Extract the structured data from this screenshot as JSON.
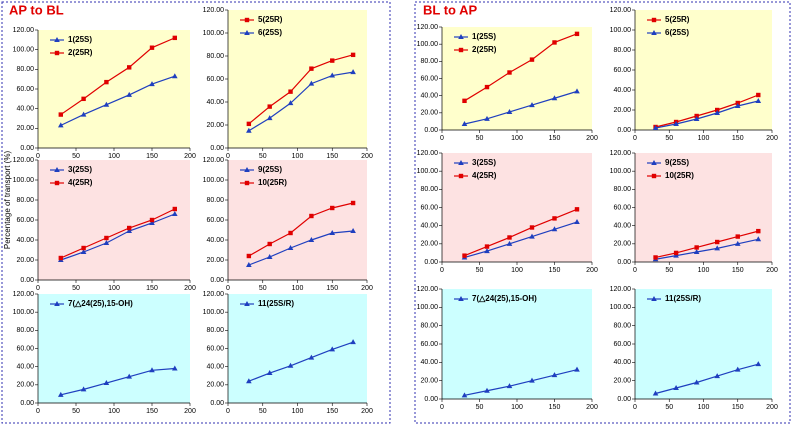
{
  "groups": [
    {
      "title": "AP to BL"
    },
    {
      "title": "BL to AP"
    }
  ],
  "y_label": "Percentage of transport (%)",
  "chart_data": [
    {
      "type": "line",
      "background": "#ffffcc",
      "x": [
        30,
        60,
        90,
        120,
        150,
        180
      ],
      "xlim": [
        0,
        200
      ],
      "xticks": [
        0,
        50,
        100,
        150,
        200
      ],
      "ylim": [
        0,
        120
      ],
      "yticks": [
        {
          "value": 0,
          "label": "0.00"
        },
        {
          "value": 20,
          "label": "20.00"
        },
        {
          "value": 40,
          "label": "40.00"
        },
        {
          "value": 60,
          "label": "60.00"
        },
        {
          "value": 80,
          "label": "80.00"
        },
        {
          "value": 100,
          "label": "100.00"
        },
        {
          "value": 120,
          "label": "120.00"
        }
      ],
      "series": [
        {
          "name": "1(25S)",
          "color": "#1f3fbf",
          "marker": "triangle",
          "values": [
            23,
            34,
            44,
            54,
            65,
            73
          ]
        },
        {
          "name": "2(25R)",
          "color": "#e00000",
          "marker": "square",
          "values": [
            34,
            50,
            67,
            82,
            102,
            112
          ]
        }
      ]
    },
    {
      "type": "line",
      "background": "#ffffcc",
      "x": [
        30,
        60,
        90,
        120,
        150,
        180
      ],
      "xlim": [
        0,
        200
      ],
      "xticks": [
        0,
        50,
        100,
        150,
        200
      ],
      "ylim": [
        0,
        120
      ],
      "yticks": [
        {
          "value": 0,
          "label": "0.00"
        },
        {
          "value": 20,
          "label": "20.00"
        },
        {
          "value": 40,
          "label": "40.00"
        },
        {
          "value": 60,
          "label": "60.00"
        },
        {
          "value": 80,
          "label": "80.00"
        },
        {
          "value": 100,
          "label": "100.00"
        },
        {
          "value": 120,
          "label": "120.00"
        }
      ],
      "series": [
        {
          "name": "5(25R)",
          "color": "#e00000",
          "marker": "square",
          "values": [
            21,
            36,
            49,
            69,
            76,
            81
          ]
        },
        {
          "name": "6(25S)",
          "color": "#1f3fbf",
          "marker": "triangle",
          "values": [
            15,
            26,
            39,
            56,
            63,
            66
          ]
        }
      ]
    },
    {
      "type": "line",
      "background": "#fde2e2",
      "x": [
        30,
        60,
        90,
        120,
        150,
        180
      ],
      "xlim": [
        0,
        200
      ],
      "xticks": [
        0,
        50,
        100,
        150,
        200
      ],
      "ylim": [
        0,
        120
      ],
      "yticks": [
        {
          "value": 0,
          "label": "0.00"
        },
        {
          "value": 20,
          "label": "20.00"
        },
        {
          "value": 40,
          "label": "40.00"
        },
        {
          "value": 60,
          "label": "60.00"
        },
        {
          "value": 80,
          "label": "80.00"
        },
        {
          "value": 100,
          "label": "100.00"
        },
        {
          "value": 120,
          "label": "120.00"
        }
      ],
      "series": [
        {
          "name": "3(25S)",
          "color": "#1f3fbf",
          "marker": "triangle",
          "values": [
            20,
            28,
            37,
            49,
            57,
            66
          ]
        },
        {
          "name": "4(25R)",
          "color": "#e00000",
          "marker": "square",
          "values": [
            22,
            32,
            42,
            52,
            60,
            71
          ]
        }
      ]
    },
    {
      "type": "line",
      "background": "#fde2e2",
      "x": [
        30,
        60,
        90,
        120,
        150,
        180
      ],
      "xlim": [
        0,
        200
      ],
      "xticks": [
        0,
        50,
        100,
        150,
        200
      ],
      "ylim": [
        0,
        120
      ],
      "yticks": [
        {
          "value": 0,
          "label": "0.00"
        },
        {
          "value": 20,
          "label": "20.00"
        },
        {
          "value": 40,
          "label": "40.00"
        },
        {
          "value": 60,
          "label": "60.00"
        },
        {
          "value": 80,
          "label": "80.00"
        },
        {
          "value": 100,
          "label": "100.00"
        },
        {
          "value": 120,
          "label": "120.00"
        }
      ],
      "series": [
        {
          "name": "9(25S)",
          "color": "#1f3fbf",
          "marker": "triangle",
          "values": [
            15,
            23,
            32,
            40,
            47,
            49
          ]
        },
        {
          "name": "10(25R)",
          "color": "#e00000",
          "marker": "square",
          "values": [
            24,
            36,
            47,
            64,
            72,
            77
          ]
        }
      ]
    },
    {
      "type": "line",
      "background": "#ccffff",
      "x": [
        30,
        60,
        90,
        120,
        150,
        180
      ],
      "xlim": [
        0,
        200
      ],
      "xticks": [
        0,
        50,
        100,
        150,
        200
      ],
      "ylim": [
        0,
        120
      ],
      "yticks": [
        {
          "value": 0,
          "label": "0.00"
        },
        {
          "value": 20,
          "label": "20.00"
        },
        {
          "value": 40,
          "label": "40.00"
        },
        {
          "value": 60,
          "label": "60.00"
        },
        {
          "value": 80,
          "label": "80.00"
        },
        {
          "value": 100,
          "label": "100.00"
        },
        {
          "value": 120,
          "label": "120.00"
        }
      ],
      "series": [
        {
          "name": "7(△24(25),15-OH)",
          "color": "#1f3fbf",
          "marker": "triangle",
          "values": [
            9,
            15,
            22,
            29,
            36,
            38
          ]
        }
      ]
    },
    {
      "type": "line",
      "background": "#ccffff",
      "x": [
        30,
        60,
        90,
        120,
        150,
        180
      ],
      "xlim": [
        0,
        200
      ],
      "xticks": [
        0,
        50,
        100,
        150,
        200
      ],
      "ylim": [
        0,
        120
      ],
      "yticks": [
        {
          "value": 0,
          "label": "0.00"
        },
        {
          "value": 20,
          "label": "20.00"
        },
        {
          "value": 40,
          "label": "40.00"
        },
        {
          "value": 60,
          "label": "60.00"
        },
        {
          "value": 80,
          "label": "80.00"
        },
        {
          "value": 100,
          "label": "100.00"
        },
        {
          "value": 120,
          "label": "120.00"
        }
      ],
      "series": [
        {
          "name": "11(25S/R)",
          "color": "#1f3fbf",
          "marker": "triangle",
          "values": [
            24,
            33,
            41,
            50,
            59,
            67
          ]
        }
      ]
    },
    {
      "type": "line",
      "background": "#ffffcc",
      "x": [
        30,
        60,
        90,
        120,
        150,
        180
      ],
      "xlim": [
        0,
        200
      ],
      "xticks": [
        0,
        50,
        100,
        150,
        200
      ],
      "ylim": [
        0,
        120
      ],
      "yticks": [
        {
          "value": 0,
          "label": "0.00"
        },
        {
          "value": 20,
          "label": "20.00"
        },
        {
          "value": 40,
          "label": "40.00"
        },
        {
          "value": 60,
          "label": "60.00"
        },
        {
          "value": 80,
          "label": "80.00"
        },
        {
          "value": 100,
          "label": "100.00"
        },
        {
          "value": 120,
          "label": "120.00"
        }
      ],
      "series": [
        {
          "name": "1(25S)",
          "color": "#1f3fbf",
          "marker": "triangle",
          "values": [
            7,
            13,
            21,
            29,
            37,
            45
          ]
        },
        {
          "name": "2(25R)",
          "color": "#e00000",
          "marker": "square",
          "values": [
            34,
            50,
            67,
            82,
            102,
            112
          ]
        }
      ]
    },
    {
      "type": "line",
      "background": "#ffffcc",
      "x": [
        30,
        60,
        90,
        120,
        150,
        180
      ],
      "xlim": [
        0,
        200
      ],
      "xticks": [
        0,
        50,
        100,
        150,
        200
      ],
      "ylim": [
        0,
        120
      ],
      "yticks": [
        {
          "value": 0,
          "label": "0.00"
        },
        {
          "value": 20,
          "label": "20.00"
        },
        {
          "value": 40,
          "label": "40.00"
        },
        {
          "value": 60,
          "label": "60.00"
        },
        {
          "value": 80,
          "label": "80.00"
        },
        {
          "value": 100,
          "label": "100.00"
        },
        {
          "value": 120,
          "label": "120.00"
        }
      ],
      "series": [
        {
          "name": "5(25R)",
          "color": "#e00000",
          "marker": "square",
          "values": [
            3,
            8,
            14,
            20,
            27,
            35
          ]
        },
        {
          "name": "6(25S)",
          "color": "#1f3fbf",
          "marker": "triangle",
          "values": [
            2,
            6,
            11,
            17,
            24,
            29
          ]
        }
      ]
    },
    {
      "type": "line",
      "background": "#fde2e2",
      "x": [
        30,
        60,
        90,
        120,
        150,
        180
      ],
      "xlim": [
        0,
        200
      ],
      "xticks": [
        0,
        50,
        100,
        150,
        200
      ],
      "ylim": [
        0,
        120
      ],
      "yticks": [
        {
          "value": 0,
          "label": "0.00"
        },
        {
          "value": 20,
          "label": "20.00"
        },
        {
          "value": 40,
          "label": "40.00"
        },
        {
          "value": 60,
          "label": "60.00"
        },
        {
          "value": 80,
          "label": "80.00"
        },
        {
          "value": 100,
          "label": "100.00"
        },
        {
          "value": 120,
          "label": "120.00"
        }
      ],
      "series": [
        {
          "name": "3(25S)",
          "color": "#1f3fbf",
          "marker": "triangle",
          "values": [
            5,
            12,
            20,
            28,
            36,
            44
          ]
        },
        {
          "name": "4(25R)",
          "color": "#e00000",
          "marker": "square",
          "values": [
            7,
            17,
            27,
            38,
            48,
            58
          ]
        }
      ]
    },
    {
      "type": "line",
      "background": "#fde2e2",
      "x": [
        30,
        60,
        90,
        120,
        150,
        180
      ],
      "xlim": [
        0,
        200
      ],
      "xticks": [
        0,
        50,
        100,
        150,
        200
      ],
      "ylim": [
        0,
        120
      ],
      "yticks": [
        {
          "value": 0,
          "label": "0.00"
        },
        {
          "value": 20,
          "label": "20.00"
        },
        {
          "value": 40,
          "label": "40.00"
        },
        {
          "value": 60,
          "label": "60.00"
        },
        {
          "value": 80,
          "label": "80.00"
        },
        {
          "value": 100,
          "label": "100.00"
        },
        {
          "value": 120,
          "label": "120.00"
        }
      ],
      "series": [
        {
          "name": "9(25S)",
          "color": "#1f3fbf",
          "marker": "triangle",
          "values": [
            3,
            7,
            11,
            15,
            20,
            25
          ]
        },
        {
          "name": "10(25R)",
          "color": "#e00000",
          "marker": "square",
          "values": [
            5,
            10,
            16,
            22,
            28,
            34
          ]
        }
      ]
    },
    {
      "type": "line",
      "background": "#ccffff",
      "x": [
        30,
        60,
        90,
        120,
        150,
        180
      ],
      "xlim": [
        0,
        200
      ],
      "xticks": [
        0,
        50,
        100,
        150,
        200
      ],
      "ylim": [
        0,
        120
      ],
      "yticks": [
        {
          "value": 0,
          "label": "0.00"
        },
        {
          "value": 20,
          "label": "20.00"
        },
        {
          "value": 40,
          "label": "40.00"
        },
        {
          "value": 60,
          "label": "60.00"
        },
        {
          "value": 80,
          "label": "80.00"
        },
        {
          "value": 100,
          "label": "100.00"
        },
        {
          "value": 120,
          "label": "120.00"
        }
      ],
      "series": [
        {
          "name": "7(△24(25),15-OH)",
          "color": "#1f3fbf",
          "marker": "triangle",
          "values": [
            4,
            9,
            14,
            20,
            26,
            32
          ]
        }
      ]
    },
    {
      "type": "line",
      "background": "#ccffff",
      "x": [
        30,
        60,
        90,
        120,
        150,
        180
      ],
      "xlim": [
        0,
        200
      ],
      "xticks": [
        0,
        50,
        100,
        150,
        200
      ],
      "ylim": [
        0,
        120
      ],
      "yticks": [
        {
          "value": 0,
          "label": "0.00"
        },
        {
          "value": 20,
          "label": "20.00"
        },
        {
          "value": 40,
          "label": "40.00"
        },
        {
          "value": 60,
          "label": "60.00"
        },
        {
          "value": 80,
          "label": "80.00"
        },
        {
          "value": 100,
          "label": "100.00"
        },
        {
          "value": 120,
          "label": "120.00"
        }
      ],
      "series": [
        {
          "name": "11(25S/R)",
          "color": "#1f3fbf",
          "marker": "triangle",
          "values": [
            6,
            12,
            18,
            25,
            32,
            38
          ]
        }
      ]
    }
  ]
}
